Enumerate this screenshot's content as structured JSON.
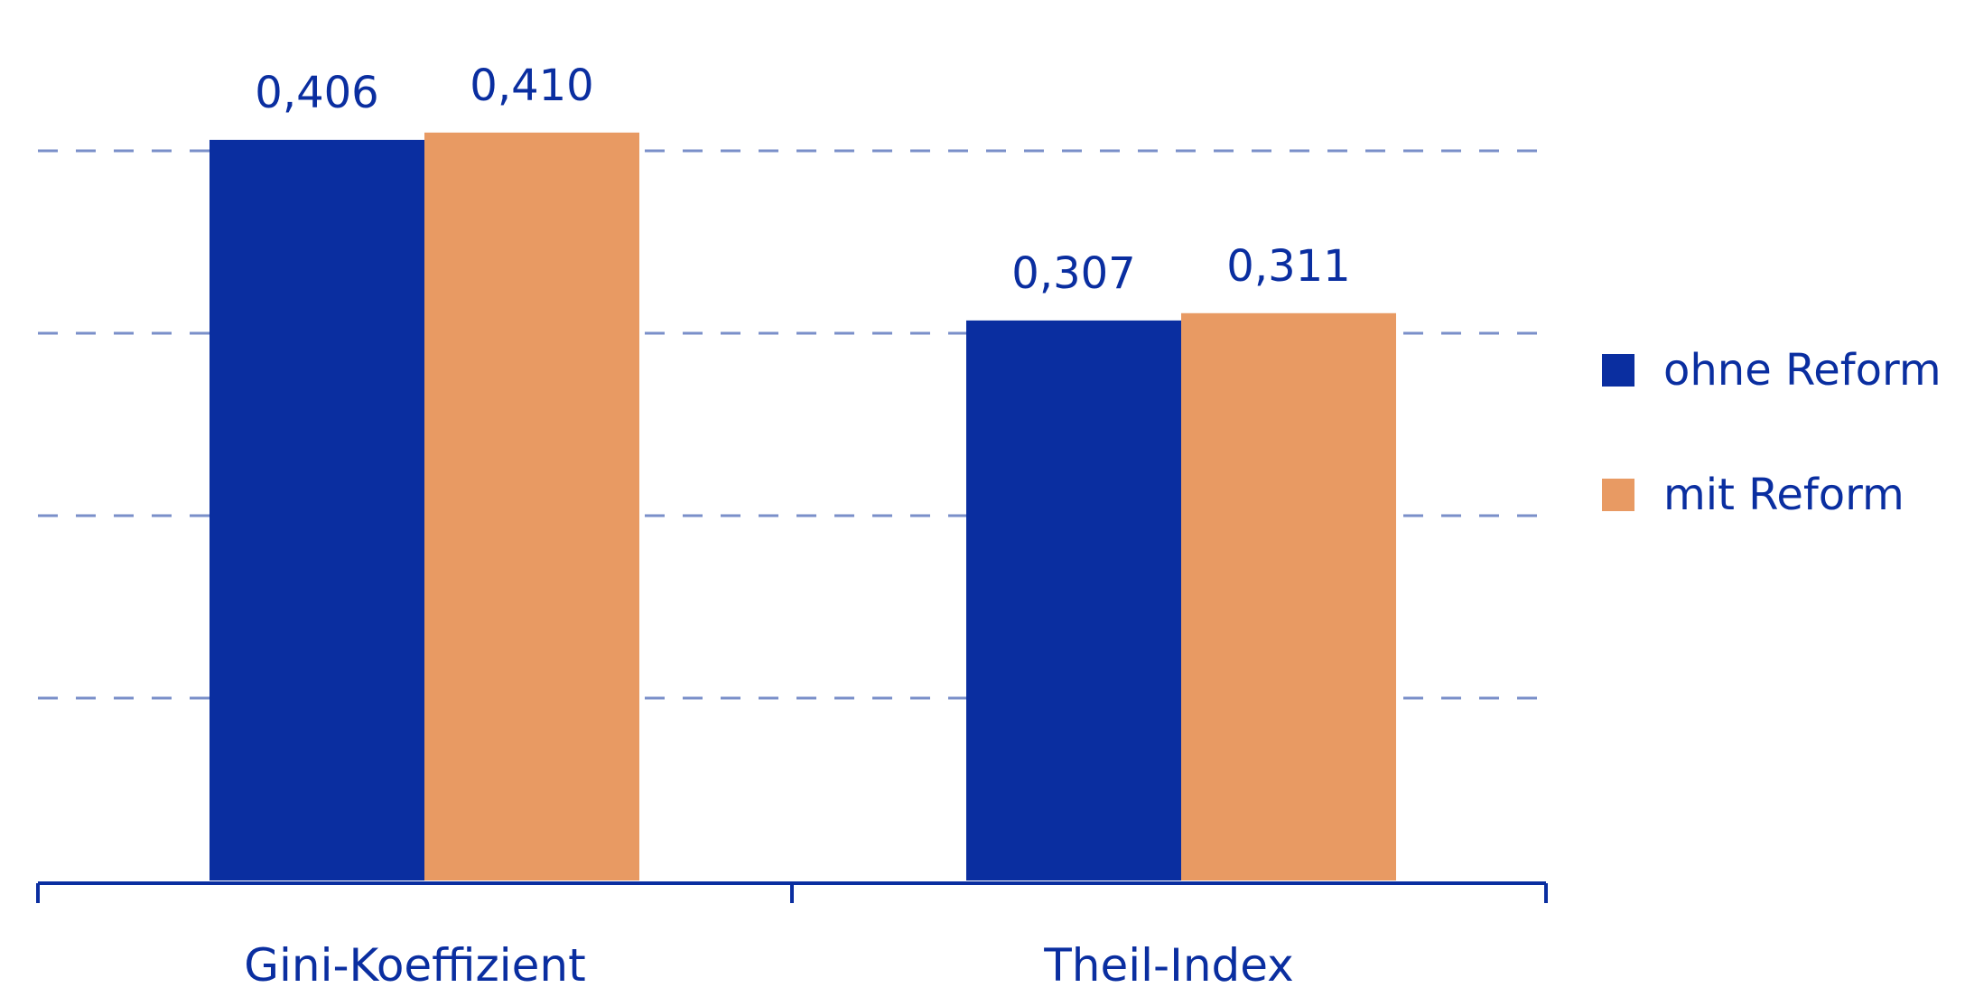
{
  "chart_data": {
    "type": "bar",
    "categories": [
      "Gini-Koeffizient",
      "Theil-Index"
    ],
    "series": [
      {
        "name": "ohne Reform",
        "color": "#0a2ea0",
        "values": [
          0.406,
          0.307
        ],
        "labels": [
          "0,406",
          "0,307"
        ]
      },
      {
        "name": "mit Reform",
        "color": "#e89a63",
        "values": [
          0.41,
          0.311
        ],
        "labels": [
          "0,410",
          "0,311"
        ]
      }
    ],
    "ylim": [
      0,
      0.4
    ],
    "grid": true,
    "legend_position": "right"
  },
  "legend": {
    "items": [
      {
        "label": "ohne Reform",
        "color": "#0a2ea0"
      },
      {
        "label": "mit Reform",
        "color": "#e89a63"
      }
    ]
  }
}
